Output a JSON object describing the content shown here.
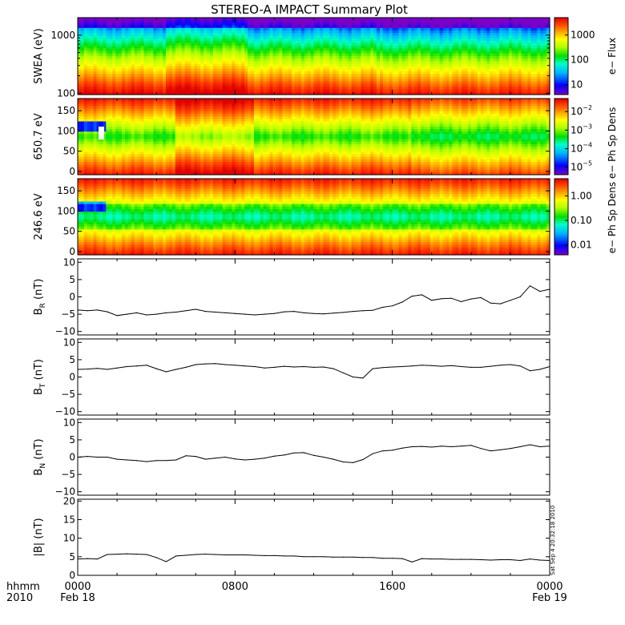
{
  "title": "STEREO-A IMPACT Summary Plot",
  "stamp": "Sat Sep  4 20:32:18 2010",
  "time_axis": {
    "row1_label": "hhmm",
    "row2_label": "2010",
    "ticks": [
      {
        "hours": 0,
        "time": "0000",
        "date": "Feb 18"
      },
      {
        "hours": 8,
        "time": "0800",
        "date": ""
      },
      {
        "hours": 16,
        "time": "1600",
        "date": ""
      },
      {
        "hours": 24,
        "time": "0000",
        "date": "Feb 19"
      }
    ],
    "range_hours": [
      0,
      24
    ]
  },
  "colorbars": {
    "flux": {
      "label": "e− Flux",
      "ticks": [
        "1000",
        "100",
        "10"
      ],
      "log_range": [
        0.5,
        3.5
      ],
      "tick_values": [
        1000,
        100,
        10
      ]
    },
    "ph_sp": {
      "label": "e− Ph Sp Dens",
      "ticks": [
        "10",
        "10",
        "10",
        "10"
      ],
      "exponents": [
        "−2",
        "−3",
        "−4",
        "−5"
      ],
      "tick_values": [
        0.01,
        0.001,
        0.0001,
        1e-05
      ]
    },
    "norm": {
      "label": "e− Ph Sp Dens",
      "ticks": [
        "1.00",
        "0.10",
        "0.01"
      ],
      "tick_values": [
        1.0,
        0.1,
        0.01
      ]
    }
  },
  "palette": [
    "#7a00c8",
    "#0000ff",
    "#00b4ff",
    "#00ffc8",
    "#00e000",
    "#b4ff00",
    "#ffff00",
    "#ffa000",
    "#ff3c00",
    "#e00000"
  ],
  "chart_data": [
    {
      "type": "heatmap",
      "ylabel": "SWEA (eV)",
      "yscale": "log",
      "ylim": [
        95,
        2000
      ],
      "yticks": [
        "1000",
        "100"
      ],
      "ytick_values": [
        1000,
        100
      ],
      "colorbar": "flux"
    },
    {
      "type": "heatmap",
      "ylabel": "650.7 eV",
      "ylim": [
        -8,
        180
      ],
      "yticks": [
        "150",
        "100",
        "50",
        "0"
      ],
      "ytick_values": [
        150,
        100,
        50,
        0
      ],
      "colorbar": "ph_sp"
    },
    {
      "type": "heatmap",
      "ylabel": "246.6 eV",
      "ylim": [
        -8,
        180
      ],
      "yticks": [
        "150",
        "100",
        "50",
        "0"
      ],
      "ytick_values": [
        150,
        100,
        50,
        0
      ],
      "colorbar": "norm"
    },
    {
      "type": "line",
      "ylabel": "B",
      "ylabel_sub": "R",
      "ylabel_unit": " (nT)",
      "ylim": [
        -11,
        11
      ],
      "yticks": [
        "10",
        "5",
        "0",
        "−5",
        "−10"
      ],
      "ytick_values": [
        10,
        5,
        0,
        -5,
        -10
      ],
      "x": [
        0,
        0.5,
        1,
        1.5,
        2,
        2.5,
        3,
        3.5,
        4,
        4.5,
        5,
        5.5,
        6,
        6.5,
        7,
        7.5,
        8,
        8.5,
        9,
        9.5,
        10,
        10.5,
        11,
        11.5,
        12,
        12.5,
        13,
        13.5,
        14,
        14.5,
        15,
        15.5,
        16,
        16.5,
        17,
        17.5,
        18,
        18.5,
        19,
        19.5,
        20,
        20.5,
        21,
        21.5,
        22,
        22.5,
        23,
        23.5,
        24
      ],
      "values": [
        -3.8,
        -4.0,
        -3.8,
        -4.3,
        -5.4,
        -5.0,
        -4.6,
        -5.2,
        -5.0,
        -4.6,
        -4.4,
        -4.0,
        -3.6,
        -4.2,
        -4.4,
        -4.6,
        -4.8,
        -5.0,
        -5.2,
        -5.0,
        -4.8,
        -4.3,
        -4.2,
        -4.6,
        -4.8,
        -4.9,
        -4.7,
        -4.5,
        -4.2,
        -4.0,
        -3.9,
        -3.0,
        -2.6,
        -1.5,
        0.2,
        0.6,
        -1.0,
        -0.5,
        -0.4,
        -1.4,
        -0.6,
        -0.2,
        -1.8,
        -2.0,
        -1.0,
        0.0,
        3.2,
        1.6,
        2.2
      ]
    },
    {
      "type": "line",
      "ylabel": "B",
      "ylabel_sub": "T",
      "ylabel_unit": " (nT)",
      "ylim": [
        -11,
        11
      ],
      "yticks": [
        "10",
        "5",
        "0",
        "−5",
        "−10"
      ],
      "ytick_values": [
        10,
        5,
        0,
        -5,
        -10
      ],
      "x": [
        0,
        0.5,
        1,
        1.5,
        2,
        2.5,
        3,
        3.5,
        4,
        4.5,
        5,
        5.5,
        6,
        6.5,
        7,
        7.5,
        8,
        8.5,
        9,
        9.5,
        10,
        10.5,
        11,
        11.5,
        12,
        12.5,
        13,
        13.5,
        14,
        14.5,
        15,
        15.5,
        16,
        16.5,
        17,
        17.5,
        18,
        18.5,
        19,
        19.5,
        20,
        20.5,
        21,
        21.5,
        22,
        22.5,
        23,
        23.5,
        24
      ],
      "values": [
        2.2,
        2.3,
        2.5,
        2.2,
        2.6,
        3.0,
        3.2,
        3.4,
        2.4,
        1.5,
        2.2,
        2.8,
        3.6,
        3.8,
        3.9,
        3.6,
        3.4,
        3.2,
        3.0,
        2.6,
        2.8,
        3.1,
        2.9,
        3.0,
        2.8,
        2.9,
        2.4,
        1.2,
        0.0,
        -0.3,
        2.4,
        2.7,
        2.9,
        3.0,
        3.2,
        3.4,
        3.3,
        3.1,
        3.3,
        3.0,
        2.8,
        2.8,
        3.1,
        3.4,
        3.6,
        3.2,
        1.8,
        2.2,
        3.0
      ]
    },
    {
      "type": "line",
      "ylabel": "B",
      "ylabel_sub": "N",
      "ylabel_unit": " (nT)",
      "ylim": [
        -11,
        11
      ],
      "yticks": [
        "10",
        "5",
        "0",
        "−5",
        "−10"
      ],
      "ytick_values": [
        10,
        5,
        0,
        -5,
        -10
      ],
      "x": [
        0,
        0.5,
        1,
        1.5,
        2,
        2.5,
        3,
        3.5,
        4,
        4.5,
        5,
        5.5,
        6,
        6.5,
        7,
        7.5,
        8,
        8.5,
        9,
        9.5,
        10,
        10.5,
        11,
        11.5,
        12,
        12.5,
        13,
        13.5,
        14,
        14.5,
        15,
        15.5,
        16,
        16.5,
        17,
        17.5,
        18,
        18.5,
        19,
        19.5,
        20,
        20.5,
        21,
        21.5,
        22,
        22.5,
        23,
        23.5,
        24
      ],
      "values": [
        0.0,
        0.2,
        0.0,
        0.0,
        -0.6,
        -0.8,
        -1.0,
        -1.3,
        -1.0,
        -1.0,
        -0.8,
        0.4,
        0.2,
        -0.6,
        -0.3,
        0.0,
        -0.5,
        -0.8,
        -0.6,
        -0.3,
        0.3,
        0.6,
        1.2,
        1.3,
        0.5,
        0.0,
        -0.6,
        -1.4,
        -1.6,
        -0.7,
        1.0,
        1.8,
        2.0,
        2.6,
        3.0,
        3.1,
        2.9,
        3.2,
        3.0,
        3.2,
        3.4,
        2.5,
        1.8,
        2.1,
        2.5,
        3.0,
        3.6,
        3.0,
        3.2
      ]
    },
    {
      "type": "line",
      "ylabel": "|B| (nT)",
      "ylim": [
        0,
        20.5
      ],
      "yticks": [
        "20",
        "15",
        "10",
        "5",
        "0"
      ],
      "ytick_values": [
        20,
        15,
        10,
        5,
        0
      ],
      "x": [
        0,
        0.5,
        1,
        1.5,
        2,
        2.5,
        3,
        3.5,
        4,
        4.5,
        5,
        5.5,
        6,
        6.5,
        7,
        7.5,
        8,
        8.5,
        9,
        9.5,
        10,
        10.5,
        11,
        11.5,
        12,
        12.5,
        13,
        13.5,
        14,
        14.5,
        15,
        15.5,
        16,
        16.5,
        17,
        17.5,
        18,
        18.5,
        19,
        19.5,
        20,
        20.5,
        21,
        21.5,
        22,
        22.5,
        23,
        23.5,
        24
      ],
      "values": [
        4.4,
        4.5,
        4.4,
        5.6,
        5.7,
        5.8,
        5.7,
        5.6,
        4.8,
        3.7,
        5.2,
        5.4,
        5.6,
        5.7,
        5.6,
        5.5,
        5.5,
        5.5,
        5.4,
        5.3,
        5.3,
        5.2,
        5.2,
        5.0,
        5.0,
        5.0,
        4.9,
        4.9,
        4.9,
        4.8,
        4.8,
        4.6,
        4.6,
        4.5,
        3.6,
        4.5,
        4.4,
        4.4,
        4.3,
        4.3,
        4.3,
        4.2,
        4.1,
        4.2,
        4.2,
        4.0,
        4.4,
        4.1,
        4.0
      ]
    }
  ]
}
